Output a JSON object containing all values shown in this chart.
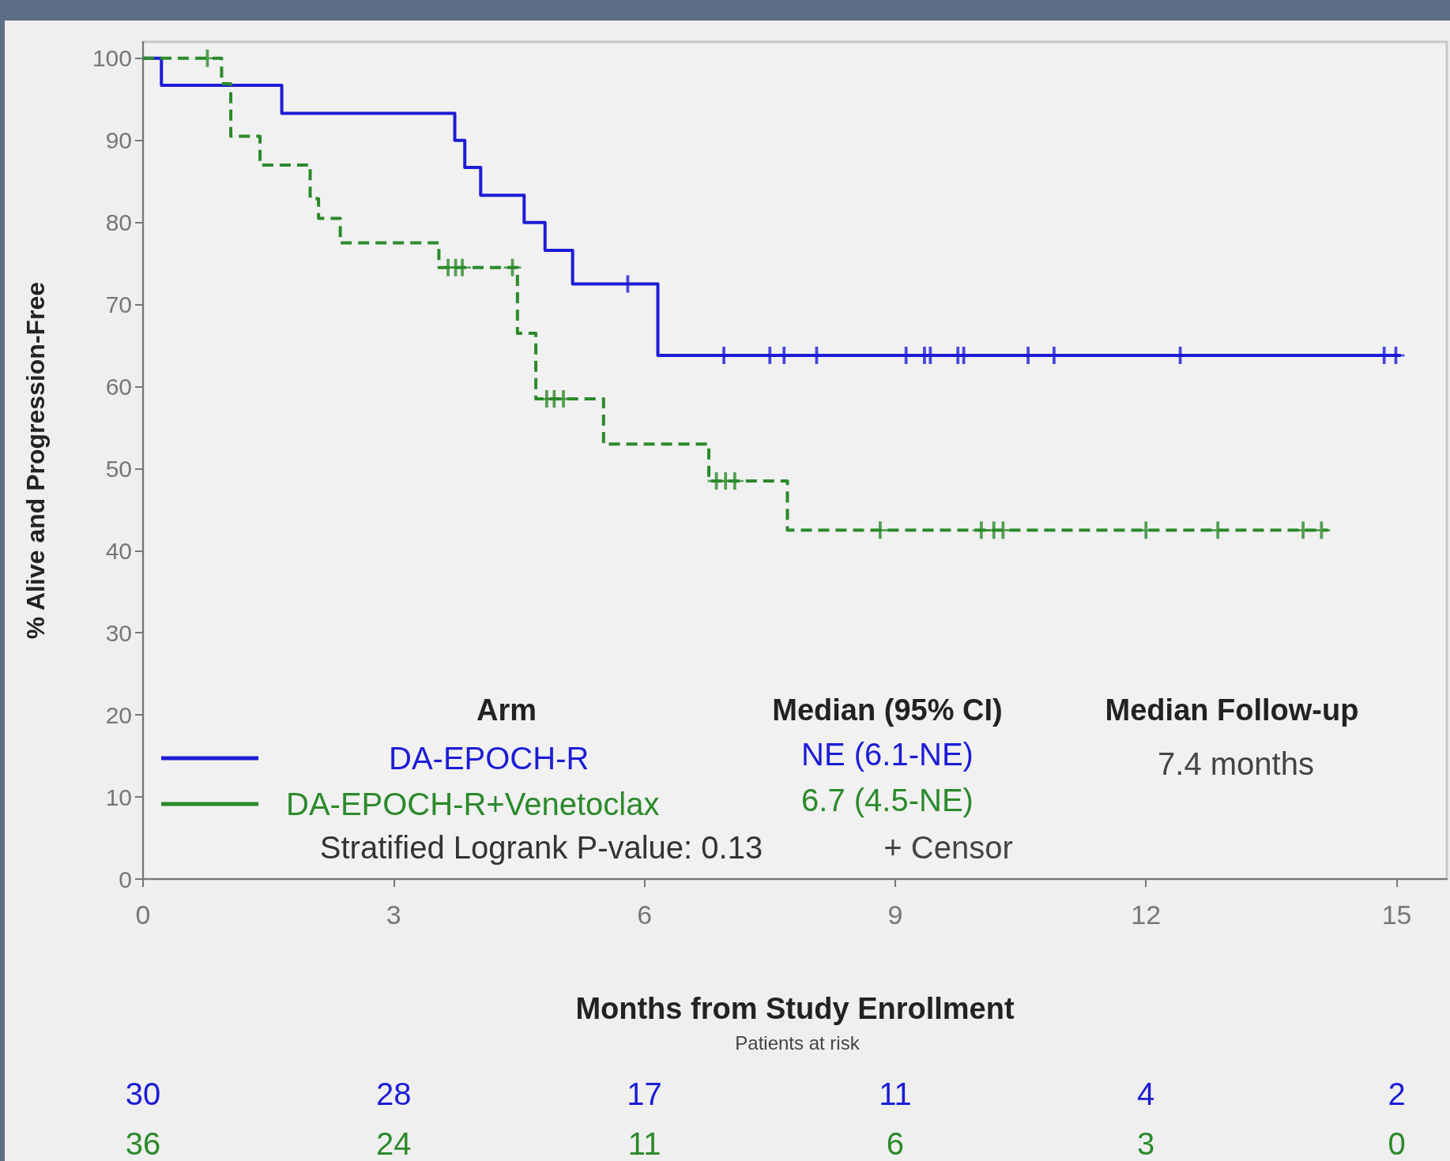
{
  "chart_data": {
    "type": "step",
    "xlabel": "Months from Study Enrollment",
    "ylabel": "% Alive and Progression-Free",
    "xlim": [
      0,
      15.6
    ],
    "xticks": [
      0,
      3,
      6,
      9,
      12,
      15
    ],
    "ylim": [
      0,
      102
    ],
    "yticks": [
      0,
      10,
      20,
      30,
      40,
      50,
      60,
      70,
      80,
      90,
      100
    ],
    "grid": false,
    "legend": "bottom left",
    "marker": "none",
    "series": [
      {
        "name": "DA-EPOCH-R",
        "color": "#1c1cd6",
        "line_style": "solid",
        "x": [
          0,
          0.22,
          1.66,
          3.73,
          3.85,
          4.04,
          4.56,
          4.81,
          5.14,
          6.16,
          15.05
        ],
        "values": [
          100,
          96.7,
          93.3,
          90.0,
          86.7,
          83.3,
          80.0,
          76.6,
          72.5,
          63.8,
          63.8
        ]
      },
      {
        "name": "DA-EPOCH-R+Venetoclax",
        "color": "#2b8a2b",
        "line_style": "dashed",
        "x": [
          0,
          0.94,
          1.05,
          1.4,
          2.0,
          2.1,
          2.36,
          3.54,
          4.48,
          4.7,
          5.51,
          6.77,
          7.71,
          14.18
        ],
        "values": [
          100,
          96.9,
          90.5,
          87.0,
          82.9,
          80.5,
          77.5,
          74.5,
          66.5,
          58.5,
          53.0,
          48.5,
          42.5,
          42.5
        ]
      },
      {
        "type": "scatter",
        "color": "#1c1cd6",
        "marker": "cross",
        "x": [
          5.8,
          6.95,
          7.5,
          7.67,
          8.06,
          9.13,
          9.35,
          9.42,
          9.75,
          9.82,
          10.59,
          10.9,
          12.41,
          14.85,
          14.99
        ],
        "values": [
          72.5,
          63.8,
          63.8,
          63.8,
          63.8,
          63.8,
          63.8,
          63.8,
          63.8,
          63.8,
          63.8,
          63.8,
          63.8,
          63.8,
          63.8
        ]
      },
      {
        "type": "scatter",
        "color": "#2b8a2b",
        "marker": "cross",
        "x": [
          0.77,
          3.65,
          3.74,
          3.82,
          4.42,
          4.83,
          4.92,
          5.03,
          6.86,
          6.97,
          7.08,
          8.82,
          10.03,
          10.18,
          10.29,
          12.0,
          12.86,
          13.88,
          14.1
        ],
        "values": [
          100,
          74.5,
          74.5,
          74.5,
          74.5,
          58.5,
          58.5,
          58.5,
          48.5,
          48.5,
          48.5,
          42.5,
          42.5,
          42.5,
          42.5,
          42.5,
          42.5,
          42.5,
          42.5
        ]
      }
    ],
    "annotations": [
      "Arm",
      "Median (95% CI)",
      "Median Follow-up",
      "NE (6.1-NE)",
      "6.7 (4.5-NE)",
      "7.4 months",
      "Stratified Logrank P-value: 0.13",
      "+ Censor",
      "Patients at risk",
      "30",
      "28",
      "17",
      "11",
      "4",
      "2",
      "36",
      "24",
      "11",
      "6",
      "3",
      "0"
    ]
  }
}
